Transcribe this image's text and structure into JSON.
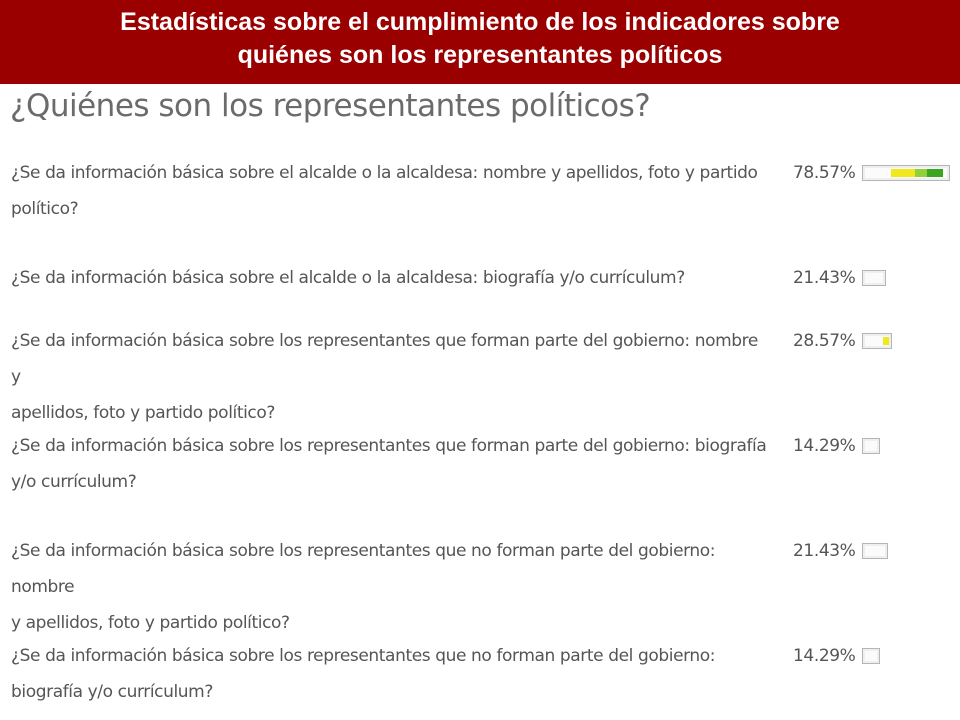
{
  "banner": {
    "line1": "Estadísticas sobre el cumplimiento de los indicadores sobre",
    "line2": "quiénes son los representantes políticos"
  },
  "heading": "¿Quiénes son los representantes políticos?",
  "indicators": [
    {
      "q1": "¿Se da información básica sobre el alcalde o la alcaldesa: nombre y apellidos, foto y partido",
      "q2": "político?",
      "pct": "78.57%",
      "value": 0.7857
    },
    {
      "q1": "¿Se da información básica sobre el alcalde o la alcaldesa: biografía y/o currículum?",
      "q2": "",
      "pct": "21.43%",
      "value": 0.2143
    },
    {
      "q1": "¿Se da información básica sobre los representantes que forman parte del gobierno: nombre y",
      "q2": "apellidos, foto y partido político?",
      "pct": "28.57%",
      "value": 0.2857
    },
    {
      "q1": "¿Se da información básica sobre los representantes que forman parte del gobierno: biografía",
      "q2": "y/o currículum?",
      "pct": "14.29%",
      "value": 0.1429
    },
    {
      "q1": "¿Se da información básica sobre los representantes que no forman parte del gobierno: nombre",
      "q2": "y apellidos, foto y partido político?",
      "pct": "21.43%",
      "value": 0.2143
    },
    {
      "q1": "¿Se da información básica sobre los representantes que no forman parte del gobierno:",
      "q2": "biografía y/o currículum?",
      "pct": "14.29%",
      "value": 0.1429
    }
  ],
  "colors": {
    "banner": "#9b0000",
    "yellow": "#f0e81a",
    "light_green": "#8fd13a",
    "green": "#3aa51e"
  }
}
